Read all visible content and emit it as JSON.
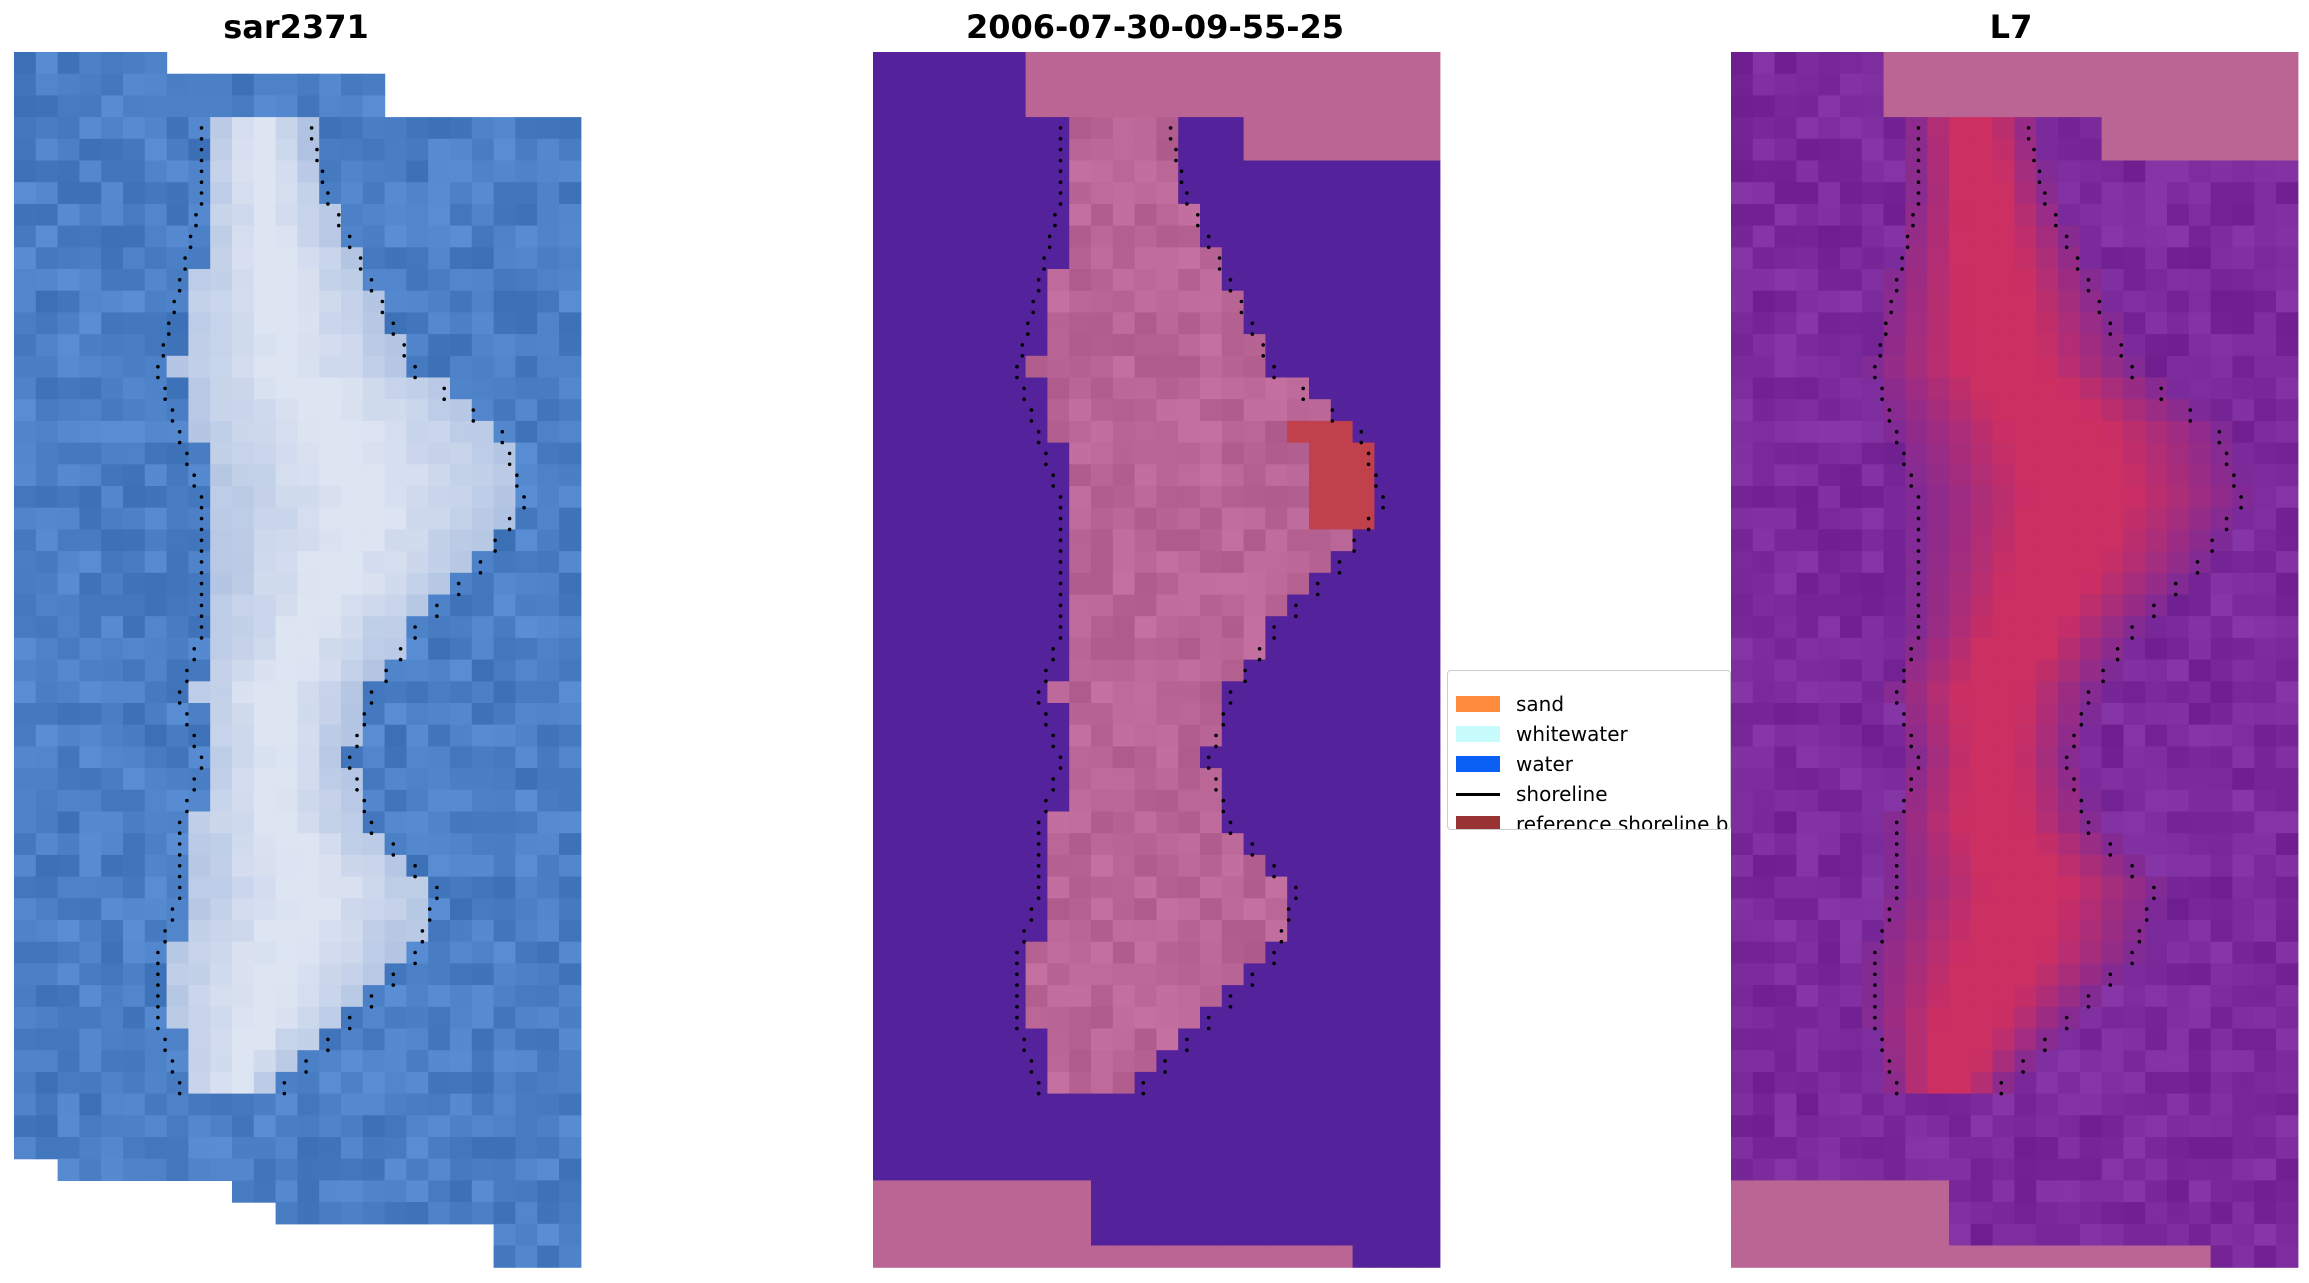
{
  "panels": [
    {
      "title": "sar2371"
    },
    {
      "title": "2006-07-30-09-55-25"
    },
    {
      "title": "L7"
    }
  ],
  "legend": {
    "items": [
      {
        "label": "sand",
        "color": "#ff8c3c",
        "kind": "patch"
      },
      {
        "label": "whitewater",
        "color": "#c8fbfb",
        "kind": "patch"
      },
      {
        "label": "water",
        "color": "#0a5ff5",
        "kind": "patch"
      },
      {
        "label": "shoreline",
        "color": "#000000",
        "kind": "line"
      },
      {
        "label": "reference shoreline b",
        "color": "#993333",
        "kind": "patch"
      }
    ]
  },
  "colors": {
    "rgb_water": "#4a7fc6",
    "rgb_land": "#dde4f2",
    "class_water": "#54229a",
    "class_land": "#b96595",
    "class_buffer": "#c0404c",
    "mndwi_water": "#7a2a9a",
    "mndwi_land": "#cc2f62",
    "nodata_pink": "#bb6594"
  }
}
